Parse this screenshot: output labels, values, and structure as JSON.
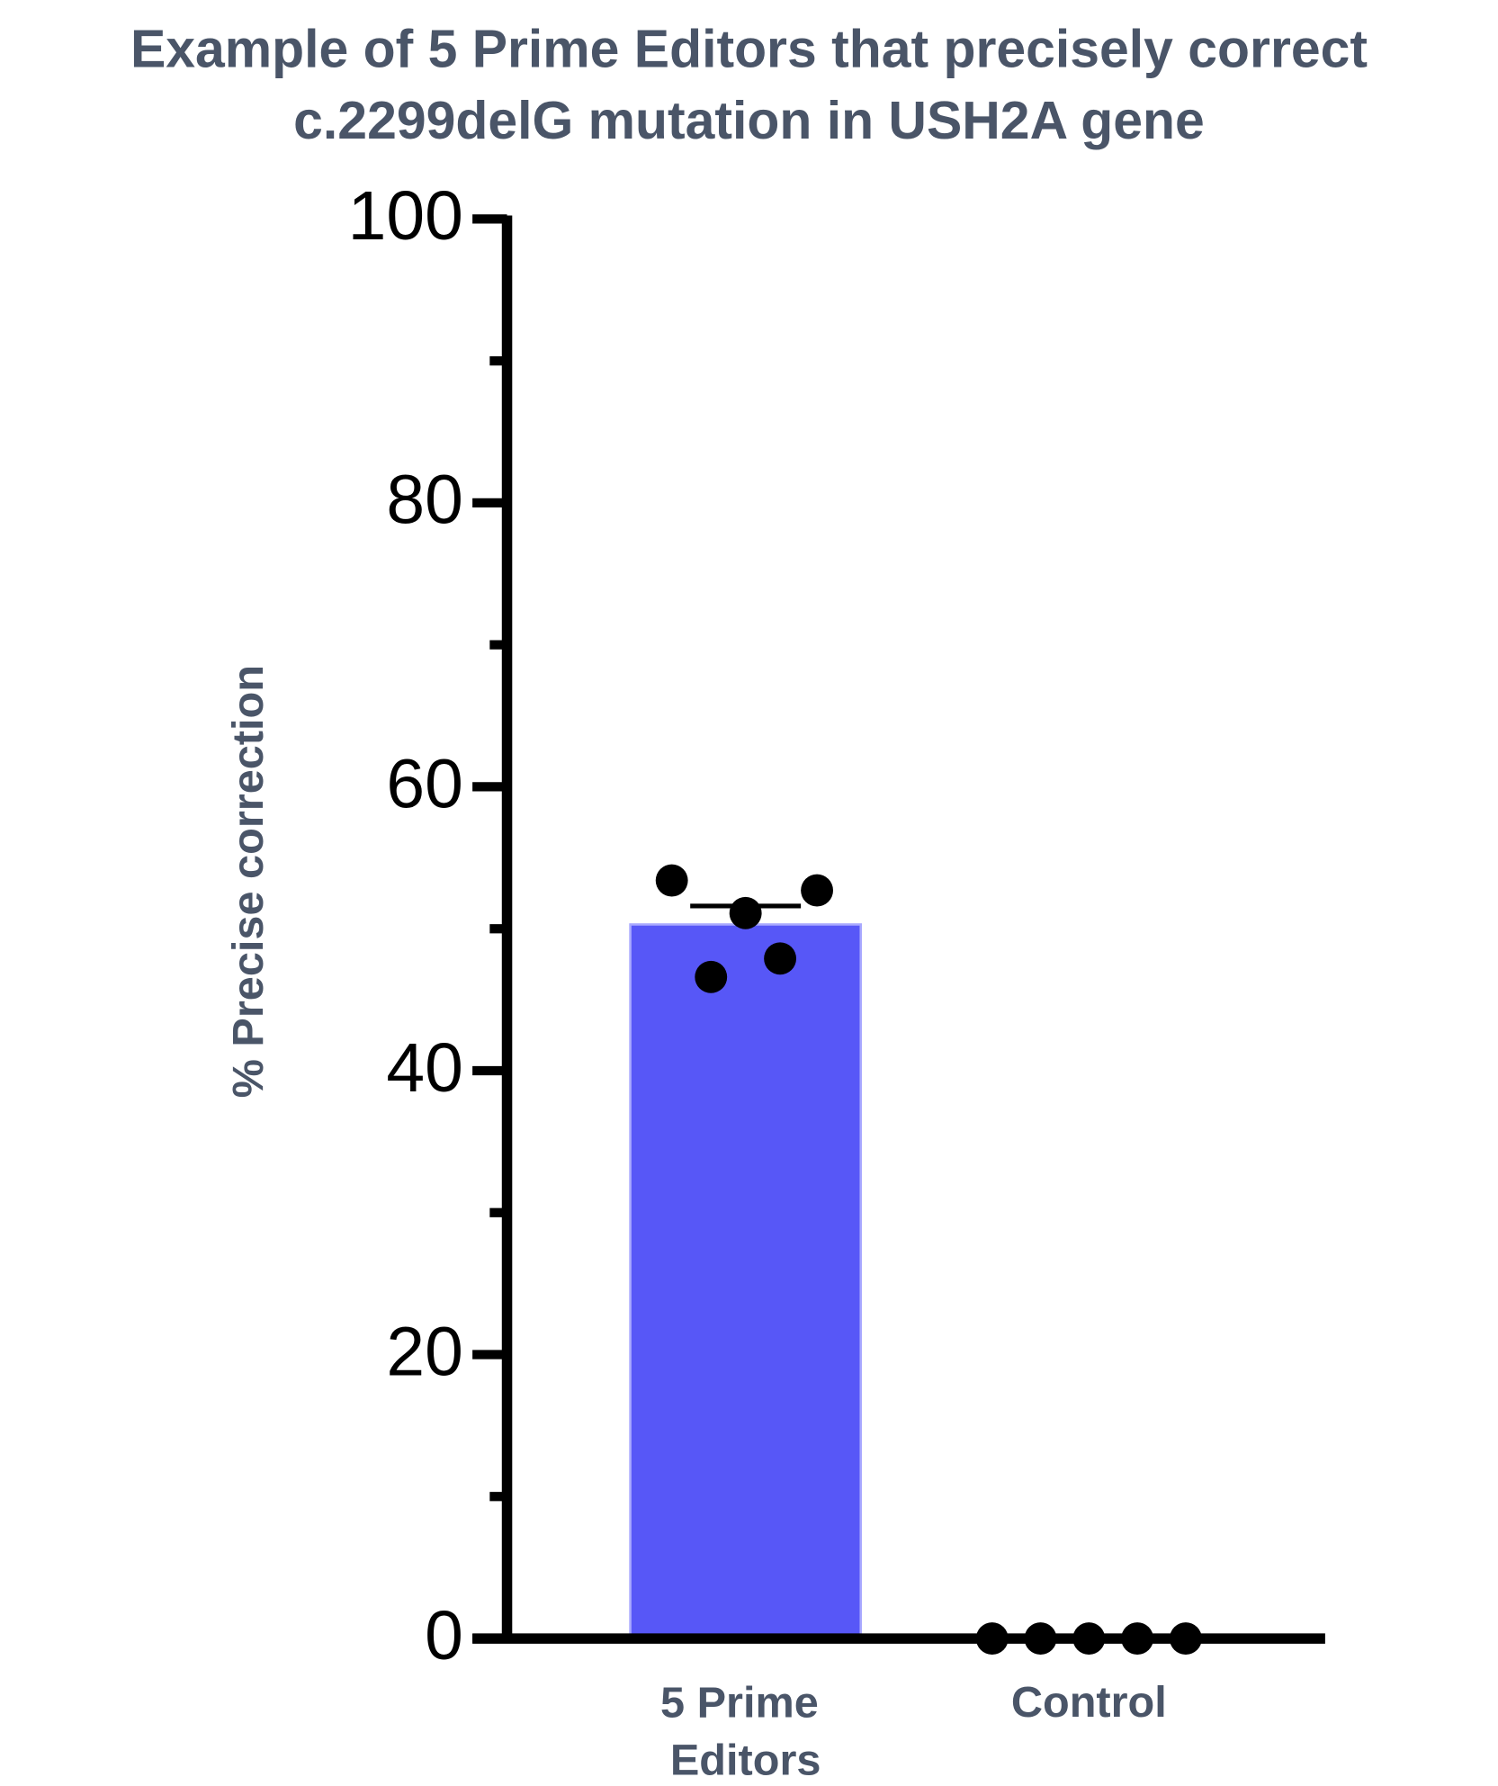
{
  "chart_data": {
    "type": "bar",
    "title": [
      "Example of 5 Prime Editors that precisely correct",
      "c.2299delG mutation in USH2A gene"
    ],
    "y_label": "% Precise correction",
    "categories": [
      "5 Prime Editors",
      "Control"
    ],
    "values": [
      50.3,
      0
    ],
    "errors": [
      1.3,
      null
    ],
    "points": [
      [
        53.4,
        52.7,
        51.1,
        47.9,
        46.6
      ],
      [
        0,
        0,
        0,
        0,
        0
      ]
    ],
    "color": "#5757f7",
    "point_color": "#000000",
    "ylim": [
      0,
      100
    ],
    "yticks": [
      0,
      20,
      40,
      60,
      80,
      100
    ],
    "yticks_minor": [
      10,
      30,
      50,
      70,
      90
    ]
  }
}
